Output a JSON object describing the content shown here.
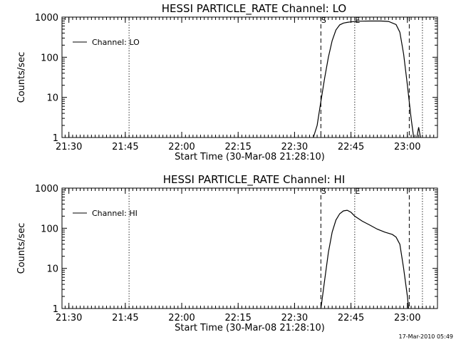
{
  "timestamp": "17-Mar-2010 05:49",
  "chart_data": [
    {
      "type": "line",
      "title": "HESSI PARTICLE_RATE Channel: LO",
      "xlabel": "Start Time (30-Mar-08 21:28:10)",
      "ylabel": "Counts/sec",
      "yscale": "log",
      "ylim": [
        1,
        1000
      ],
      "xlim": [
        "21:28:10",
        "23:08:00"
      ],
      "x_tick_labels": [
        "21:30",
        "21:45",
        "22:00",
        "22:15",
        "22:30",
        "22:45",
        "23:00"
      ],
      "x_ticks": [
        "21:30",
        "21:45",
        "22:00",
        "22:15",
        "22:30",
        "22:45",
        "23:00"
      ],
      "y_tick_labels": [
        "1",
        "10",
        "100",
        "1000"
      ],
      "y_ticks": [
        1,
        10,
        100,
        1000
      ],
      "legend": {
        "label": "Channel: LO",
        "placement": "top-left"
      },
      "series": [
        {
          "name": "Channel: LO",
          "points": [
            [
              "22:35",
              1
            ],
            [
              "22:36",
              2
            ],
            [
              "22:37",
              8
            ],
            [
              "22:38",
              30
            ],
            [
              "22:39",
              100
            ],
            [
              "22:40",
              260
            ],
            [
              "22:41",
              480
            ],
            [
              "22:42",
              640
            ],
            [
              "22:43",
              710
            ],
            [
              "22:44",
              740
            ],
            [
              "22:45",
              760
            ],
            [
              "22:47",
              790
            ],
            [
              "22:50",
              800
            ],
            [
              "22:53",
              800
            ],
            [
              "22:55",
              780
            ],
            [
              "22:57",
              650
            ],
            [
              "22:58",
              420
            ],
            [
              "22:59",
              120
            ],
            [
              "23:00",
              20
            ],
            [
              "23:01",
              3
            ],
            [
              "23:01:40",
              1
            ]
          ]
        },
        {
          "name": "",
          "points": [
            [
              "23:02:30",
              1
            ],
            [
              "23:03:00",
              1.8
            ],
            [
              "23:03:30",
              1
            ]
          ]
        }
      ],
      "vertical_markers": [
        {
          "time": "21:46",
          "style": "dotted",
          "label": ""
        },
        {
          "time": "22:37",
          "style": "dashed",
          "label": "S"
        },
        {
          "time": "22:46",
          "style": "dotted",
          "label": "E"
        },
        {
          "time": "23:00:30",
          "style": "dashed",
          "label": ""
        },
        {
          "time": "23:04",
          "style": "dotted",
          "label": ""
        }
      ]
    },
    {
      "type": "line",
      "title": "HESSI PARTICLE_RATE Channel: HI",
      "xlabel": "Start Time (30-Mar-08 21:28:10)",
      "ylabel": "Counts/sec",
      "yscale": "log",
      "ylim": [
        1,
        1000
      ],
      "xlim": [
        "21:28:10",
        "23:08:00"
      ],
      "x_tick_labels": [
        "21:30",
        "21:45",
        "22:00",
        "22:15",
        "22:30",
        "22:45",
        "23:00"
      ],
      "x_ticks": [
        "21:30",
        "21:45",
        "22:00",
        "22:15",
        "22:30",
        "22:45",
        "23:00"
      ],
      "y_tick_labels": [
        "1",
        "10",
        "100",
        "1000"
      ],
      "y_ticks": [
        1,
        10,
        100,
        1000
      ],
      "legend": {
        "label": "Channel: HI",
        "placement": "top-left"
      },
      "series": [
        {
          "name": "Channel: HI",
          "points": [
            [
              "22:37",
              1
            ],
            [
              "22:38",
              5
            ],
            [
              "22:39",
              25
            ],
            [
              "22:40",
              80
            ],
            [
              "22:41",
              160
            ],
            [
              "22:42",
              230
            ],
            [
              "22:43",
              270
            ],
            [
              "22:44",
              280
            ],
            [
              "22:45",
              250
            ],
            [
              "22:46",
              200
            ],
            [
              "22:48",
              150
            ],
            [
              "22:50",
              120
            ],
            [
              "22:52",
              95
            ],
            [
              "22:54",
              80
            ],
            [
              "22:56",
              70
            ],
            [
              "22:57",
              60
            ],
            [
              "22:58",
              40
            ],
            [
              "22:59",
              10
            ],
            [
              "23:00",
              2
            ],
            [
              "23:00:20",
              1
            ]
          ]
        }
      ],
      "vertical_markers": [
        {
          "time": "21:46",
          "style": "dotted",
          "label": ""
        },
        {
          "time": "22:37",
          "style": "dashed",
          "label": "S"
        },
        {
          "time": "22:46",
          "style": "dotted",
          "label": "E"
        },
        {
          "time": "23:00:30",
          "style": "dashed",
          "label": ""
        },
        {
          "time": "23:04",
          "style": "dotted",
          "label": ""
        }
      ]
    }
  ]
}
